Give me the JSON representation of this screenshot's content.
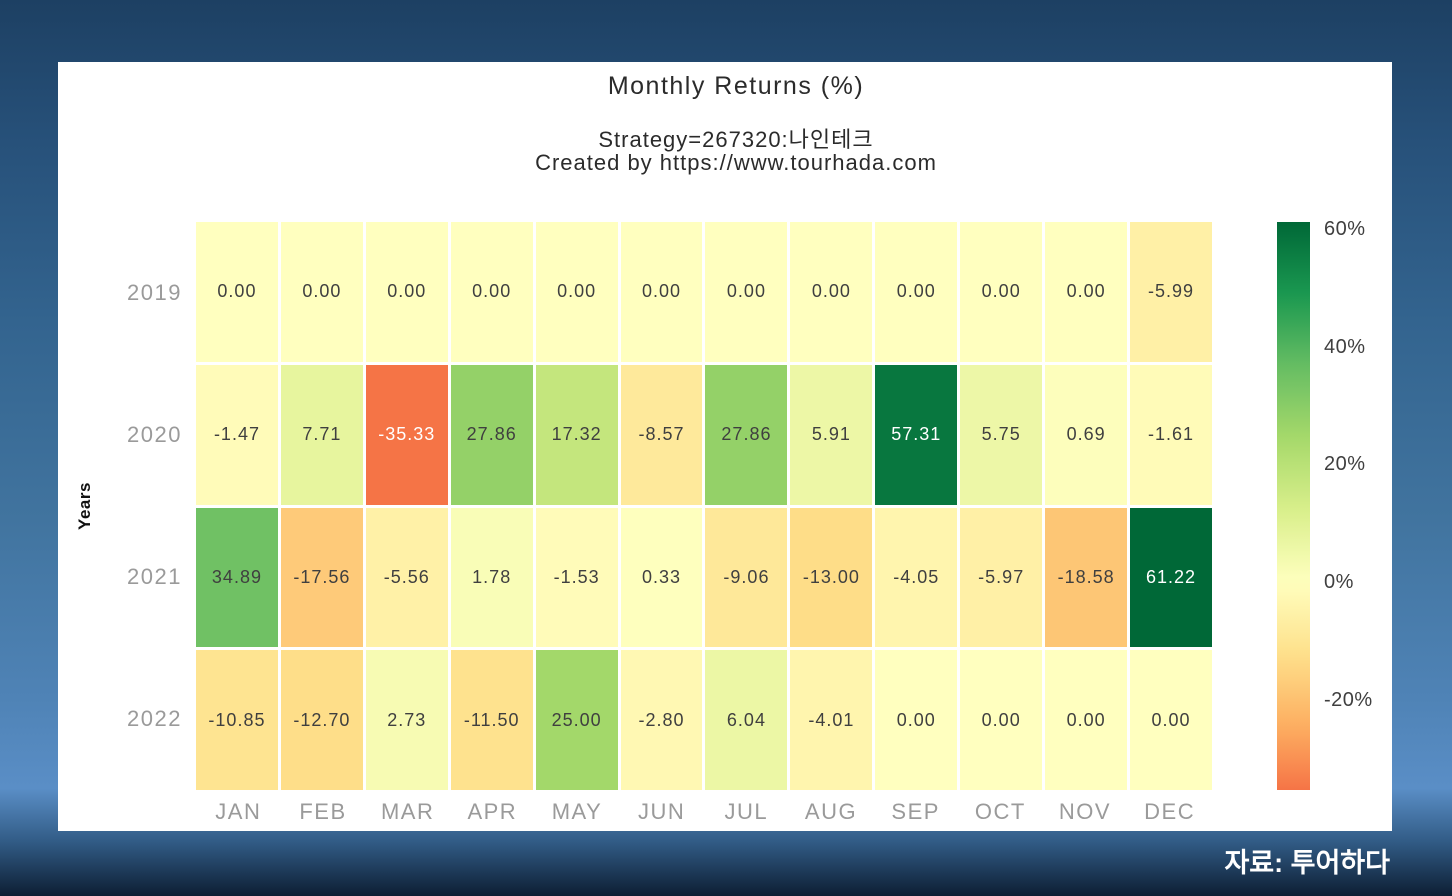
{
  "chart_data": {
    "type": "heatmap",
    "title": "Monthly Returns (%)",
    "subtitle": [
      "Strategy=267320:나인테크",
      "Created by https://www.tourhada.com"
    ],
    "xlabel": "",
    "ylabel": "Years",
    "x_categories": [
      "JAN",
      "FEB",
      "MAR",
      "APR",
      "MAY",
      "JUN",
      "JUL",
      "AUG",
      "SEP",
      "OCT",
      "NOV",
      "DEC"
    ],
    "y_categories": [
      "2019",
      "2020",
      "2021",
      "2022"
    ],
    "rows": [
      [
        0.0,
        0.0,
        0.0,
        0.0,
        0.0,
        0.0,
        0.0,
        0.0,
        0.0,
        0.0,
        0.0,
        -5.99
      ],
      [
        -1.47,
        7.71,
        -35.33,
        27.86,
        17.32,
        -8.57,
        27.86,
        5.91,
        57.31,
        5.75,
        0.69,
        -1.61
      ],
      [
        34.89,
        -17.56,
        -5.56,
        1.78,
        -1.53,
        0.33,
        -9.06,
        -13.0,
        -4.05,
        -5.97,
        -18.58,
        61.22
      ],
      [
        -10.85,
        -12.7,
        2.73,
        -11.5,
        25.0,
        -2.8,
        6.04,
        -4.01,
        0.0,
        0.0,
        0.0,
        0.0
      ]
    ],
    "colormap": "RdYlGn",
    "color_domain": [
      -61.22,
      61.22
    ],
    "colorbar_range": [
      -35.33,
      61.22
    ],
    "colorbar_ticks": [
      {
        "value": 60,
        "label": "60%"
      },
      {
        "value": 40,
        "label": "40%"
      },
      {
        "value": 20,
        "label": "20%"
      },
      {
        "value": 0,
        "label": "0%"
      },
      {
        "value": -20,
        "label": "-20%"
      }
    ],
    "legend_position": "right",
    "grid": false
  },
  "footer": {
    "source_label": "자료: 투어하다"
  }
}
